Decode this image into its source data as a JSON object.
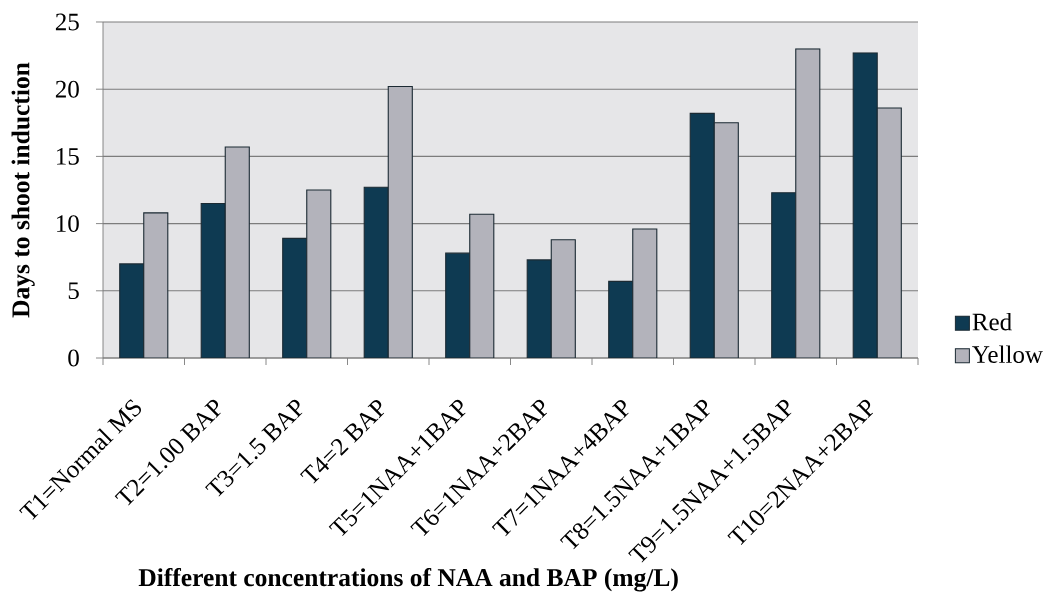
{
  "chart_data": {
    "type": "bar",
    "xlabel": "Different concentrations of NAA and BAP (mg/L)",
    "ylabel": "Days to shoot induction",
    "categories": [
      "T1=Normal MS",
      "T2=1.00 BAP",
      "T3=1.5 BAP",
      "T4=2 BAP",
      "T5=1NAA+1BAP",
      "T6=1NAA+2BAP",
      "T7=1NAA+4BAP",
      "T8=1.5NAA+1BAP",
      "T9=1.5NAA+1.5BAP",
      "T10=2NAA+2BAP"
    ],
    "series": [
      {
        "name": "Red",
        "color": "#0e3a52",
        "values": [
          7.0,
          11.5,
          8.9,
          12.7,
          7.8,
          7.3,
          5.7,
          18.2,
          12.3,
          22.7
        ]
      },
      {
        "name": "Yellow",
        "color": "#b3b3bb",
        "values": [
          10.8,
          15.7,
          12.5,
          20.2,
          10.7,
          8.8,
          9.6,
          17.5,
          23.0,
          18.6
        ]
      }
    ],
    "ylim": [
      0,
      25
    ],
    "yticks": [
      0,
      5,
      10,
      15,
      20,
      25
    ],
    "grid": "y",
    "legend": "right"
  }
}
